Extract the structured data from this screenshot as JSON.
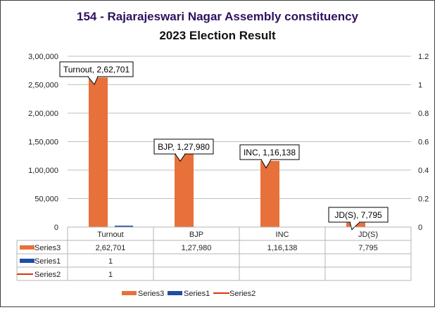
{
  "chart_data": {
    "type": "bar",
    "title": "154 - Rajarajeswari  Nagar  Assembly  constituency",
    "subtitle": "2023 Election  Result",
    "categories": [
      "Turnout",
      "BJP",
      "INC",
      "JD(S)"
    ],
    "series": [
      {
        "name": "Series3",
        "values": [
          262701,
          127980,
          116138,
          7795
        ],
        "display": [
          "2,62,701",
          "1,27,980",
          "1,16,138",
          "7,795"
        ],
        "color": "#E8703A",
        "kind": "bar"
      },
      {
        "name": "Series1",
        "values": [
          1,
          null,
          null,
          null
        ],
        "display": [
          "1",
          "",
          "",
          ""
        ],
        "color": "#1F4EA8",
        "kind": "bar"
      },
      {
        "name": "Series2",
        "values": [
          1,
          null,
          null,
          null
        ],
        "display": [
          "1",
          "",
          "",
          ""
        ],
        "color": "#D9340E",
        "kind": "line"
      }
    ],
    "data_labels": [
      "Turnout, 2,62,701",
      "BJP, 1,27,980",
      "INC, 1,16,138",
      "JD(S), 7,795"
    ],
    "ylim": [
      0,
      300000
    ],
    "yticks": [
      "0",
      "50,000",
      "1,00,000",
      "1,50,000",
      "2,00,000",
      "2,50,000",
      "3,00,000"
    ],
    "y2lim": [
      0,
      1.2
    ],
    "y2ticks": [
      "0",
      "0.2",
      "0.4",
      "0.6",
      "0.8",
      "1",
      "1.2"
    ],
    "grid": true,
    "legend": "bottom",
    "data_table": true
  }
}
